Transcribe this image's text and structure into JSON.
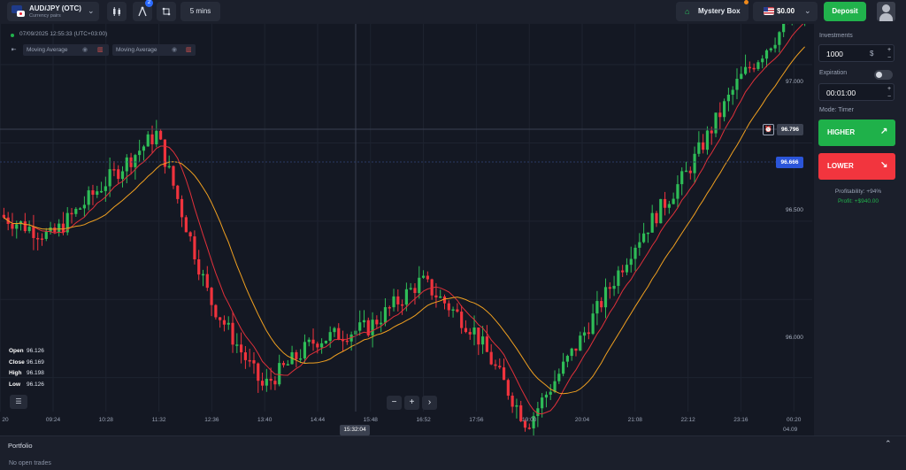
{
  "header": {
    "asset_name": "AUD/JPY (OTC)",
    "asset_sub": "Currency pairs",
    "indicator_badge": "2",
    "timeframe": "5 mins",
    "mystery_box": "Mystery Box",
    "balance": "$0.00",
    "deposit": "Deposit"
  },
  "chart": {
    "datetime": "07/09/2025 12:55:33 (UTC+03:00)",
    "indicators": [
      {
        "label": "Moving Average"
      },
      {
        "label": "Moving Average"
      }
    ],
    "ohlc": {
      "open_label": "Open",
      "open": "96.126",
      "close_label": "Close",
      "close": "96.169",
      "high_label": "High",
      "high": "96.198",
      "low_label": "Low",
      "low": "96.126"
    },
    "time_axis": [
      "20",
      "09:24",
      "10:28",
      "11:32",
      "12:36",
      "13:40",
      "14:44",
      "15:48",
      "16:52",
      "17:56",
      "19:00",
      "20:04",
      "21:08",
      "22:12",
      "23:16",
      "00:20"
    ],
    "date_suffix": "04.09",
    "crosshair_time": "15:32:04",
    "price_axis": [
      "97.000",
      "96.500",
      "96.000"
    ],
    "crosshair_price": "96.796",
    "current_price": "96.666",
    "colors": {
      "up": "#2ebd57",
      "down": "#f0333d",
      "ma_fast": "#e0303a",
      "ma_slow": "#f0a020"
    }
  },
  "chart_data": {
    "type": "candlestick",
    "price_range": [
      95.9,
      97.15
    ],
    "x": [
      "09:24",
      "10:28",
      "11:32",
      "12:36",
      "13:40",
      "14:44",
      "15:48",
      "16:52",
      "17:56",
      "19:00",
      "20:04",
      "21:08",
      "22:12",
      "23:16",
      "00:20"
    ],
    "close": [
      96.45,
      96.62,
      96.78,
      96.25,
      95.97,
      96.12,
      96.16,
      96.31,
      96.15,
      95.85,
      96.12,
      96.42,
      96.65,
      96.95,
      97.15
    ]
  },
  "panel": {
    "investments_label": "Investments",
    "investment": "1000",
    "currency": "$",
    "plus": "+",
    "minus": "−",
    "expiration_label": "Expiration",
    "expiration": "00:01:00",
    "mode": "Mode: Timer",
    "higher": "HIGHER",
    "lower": "LOWER",
    "profitability": "Profitability: +94%",
    "profit": "Profit: +$940.00"
  },
  "portfolio": {
    "title": "Portfolio",
    "empty": "No open trades"
  }
}
